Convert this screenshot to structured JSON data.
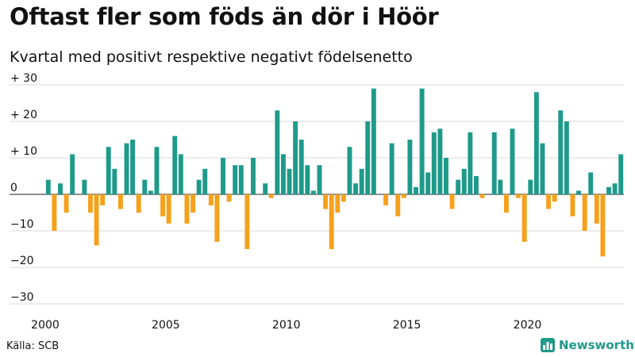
{
  "header": {
    "title": "Oftast fler som föds än dör i Höör",
    "subtitle": "Kvartal med positivt respektive negativt födelsenetto"
  },
  "footer": {
    "source": "Källa: SCB",
    "brand": "Newsworthy",
    "brand_icon": "bar-chart-logo-icon"
  },
  "colors": {
    "positive": "#1f9a8a",
    "negative": "#f5a11c",
    "grid": "#d9d9d9",
    "axis": "#222222"
  },
  "chart_data": {
    "type": "bar",
    "title": "Oftast fler som föds än dör i Höör",
    "subtitle": "Kvartal med positivt respektive negativt födelsenetto",
    "xlabel": "",
    "ylabel": "",
    "ylim": [
      -30,
      30
    ],
    "yticks": [
      30,
      20,
      10,
      0,
      -10,
      -20,
      -30
    ],
    "ytick_labels": [
      "+ 30",
      "+ 20",
      "+ 10",
      "0",
      "−10",
      "−20",
      "−30"
    ],
    "x_range": [
      "2000-Q1",
      "2023-Q4"
    ],
    "xtick_labels": [
      "2000",
      "2005",
      "2010",
      "2015",
      "2020"
    ],
    "grid": true,
    "legend": "none",
    "categories": [
      "2000-Q1",
      "2000-Q2",
      "2000-Q3",
      "2000-Q4",
      "2001-Q1",
      "2001-Q2",
      "2001-Q3",
      "2001-Q4",
      "2002-Q1",
      "2002-Q2",
      "2002-Q3",
      "2002-Q4",
      "2003-Q1",
      "2003-Q2",
      "2003-Q3",
      "2003-Q4",
      "2004-Q1",
      "2004-Q2",
      "2004-Q3",
      "2004-Q4",
      "2005-Q1",
      "2005-Q2",
      "2005-Q3",
      "2005-Q4",
      "2006-Q1",
      "2006-Q2",
      "2006-Q3",
      "2006-Q4",
      "2007-Q1",
      "2007-Q2",
      "2007-Q3",
      "2007-Q4",
      "2008-Q1",
      "2008-Q2",
      "2008-Q3",
      "2008-Q4",
      "2009-Q1",
      "2009-Q2",
      "2009-Q3",
      "2009-Q4",
      "2010-Q1",
      "2010-Q2",
      "2010-Q3",
      "2010-Q4",
      "2011-Q1",
      "2011-Q2",
      "2011-Q3",
      "2011-Q4",
      "2012-Q1",
      "2012-Q2",
      "2012-Q3",
      "2012-Q4",
      "2013-Q1",
      "2013-Q2",
      "2013-Q3",
      "2013-Q4",
      "2014-Q1",
      "2014-Q2",
      "2014-Q3",
      "2014-Q4",
      "2015-Q1",
      "2015-Q2",
      "2015-Q3",
      "2015-Q4",
      "2016-Q1",
      "2016-Q2",
      "2016-Q3",
      "2016-Q4",
      "2017-Q1",
      "2017-Q2",
      "2017-Q3",
      "2017-Q4",
      "2018-Q1",
      "2018-Q2",
      "2018-Q3",
      "2018-Q4",
      "2019-Q1",
      "2019-Q2",
      "2019-Q3",
      "2019-Q4",
      "2020-Q1",
      "2020-Q2",
      "2020-Q3",
      "2020-Q4",
      "2021-Q1",
      "2021-Q2",
      "2021-Q3",
      "2021-Q4",
      "2022-Q1",
      "2022-Q2",
      "2022-Q3",
      "2022-Q4",
      "2023-Q1",
      "2023-Q2",
      "2023-Q3",
      "2023-Q4"
    ],
    "values": [
      4,
      -10,
      3,
      -5,
      11,
      0,
      4,
      -5,
      -14,
      -3,
      13,
      7,
      -4,
      14,
      15,
      -5,
      4,
      1,
      13,
      -6,
      -8,
      16,
      11,
      -8,
      -5,
      4,
      7,
      -3,
      -13,
      10,
      -2,
      8,
      8,
      -15,
      10,
      0,
      3,
      -1,
      23,
      11,
      7,
      20,
      15,
      8,
      1,
      8,
      -4,
      -15,
      -5,
      -2,
      13,
      3,
      7,
      20,
      29,
      0,
      -3,
      14,
      -6,
      -1,
      15,
      2,
      29,
      6,
      17,
      18,
      10,
      -4,
      4,
      7,
      17,
      5,
      -1,
      0,
      17,
      4,
      -5,
      18,
      -1,
      -13,
      4,
      28,
      14,
      -4,
      -2,
      23,
      20,
      -6,
      1,
      -10,
      6,
      -8,
      -17,
      2,
      3,
      11
    ]
  }
}
